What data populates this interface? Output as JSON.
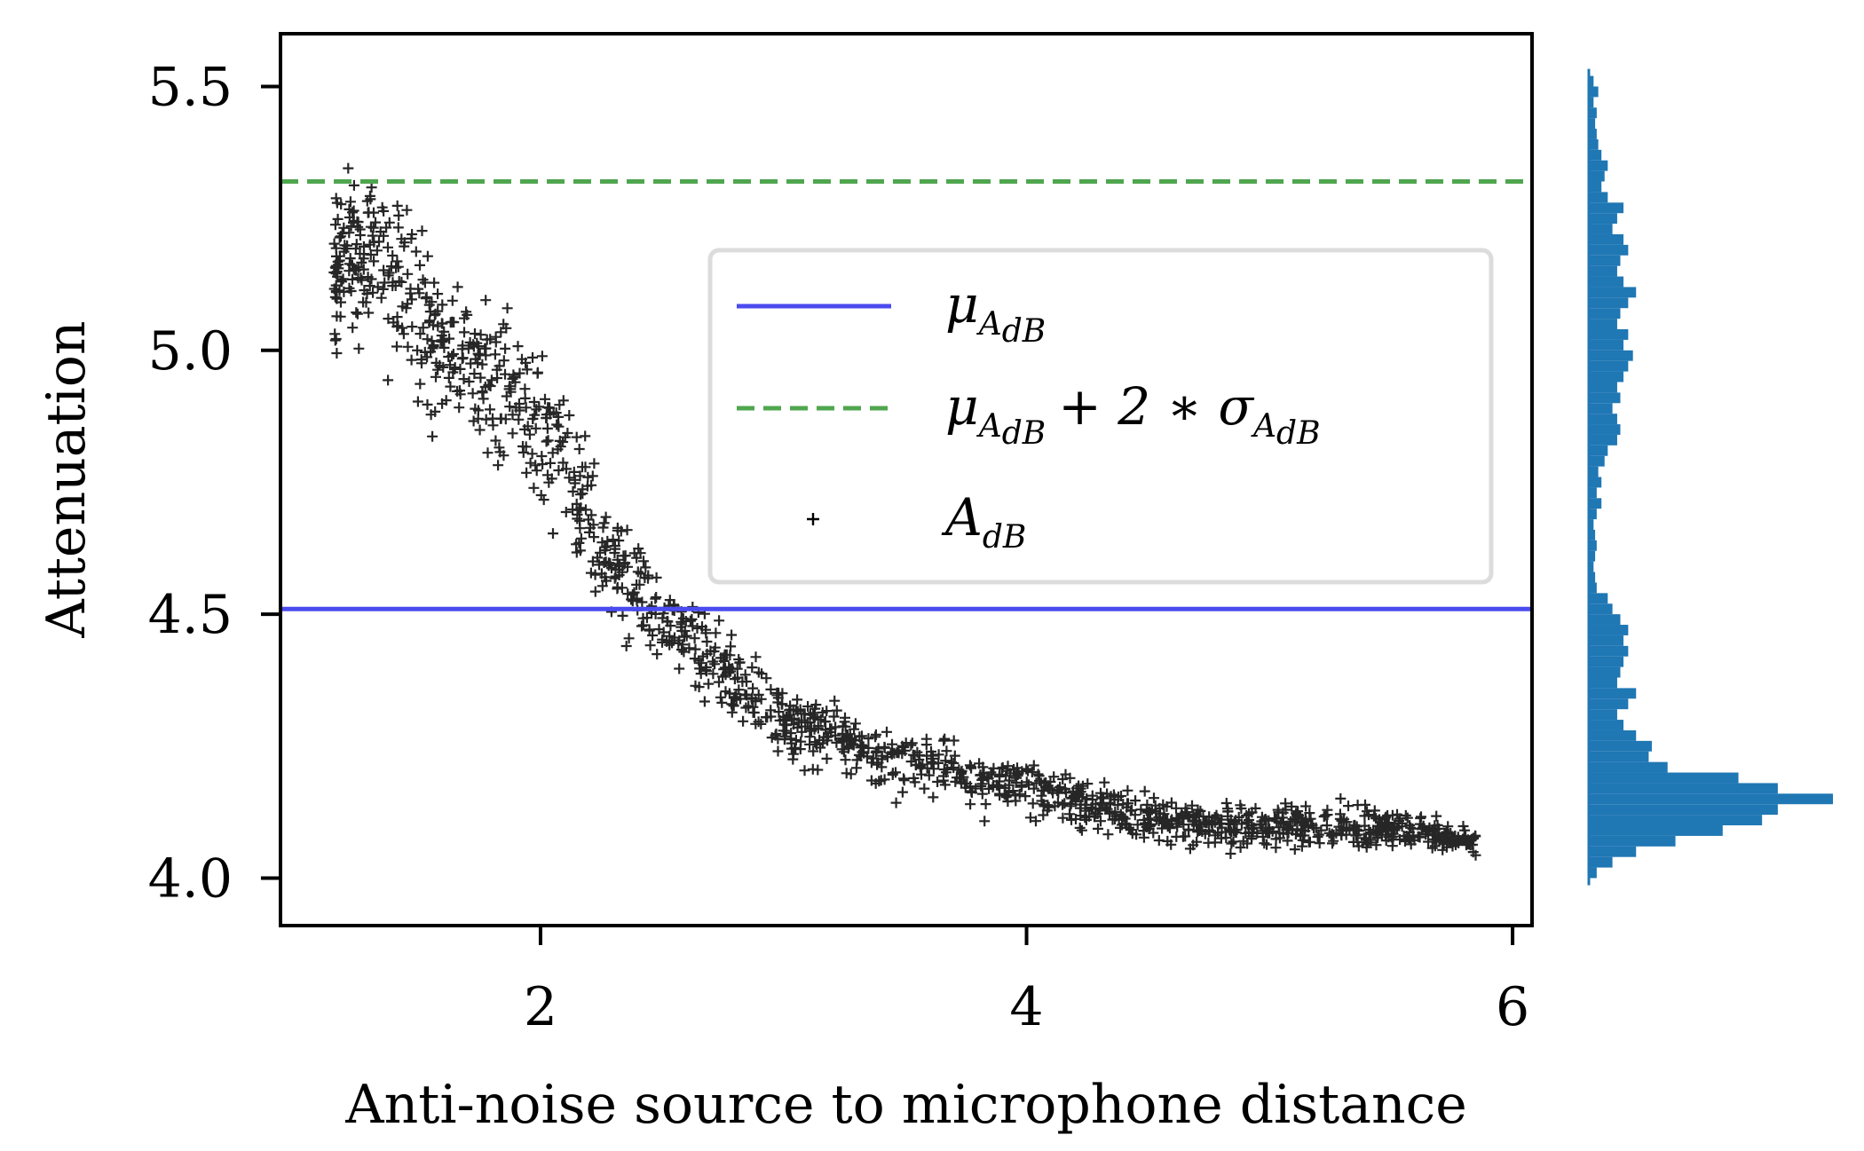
{
  "chart_data": {
    "type": "scatter",
    "xlabel": "Anti-noise source to microphone distance",
    "ylabel": "Attenuation",
    "xlim": [
      0.93,
      6.08
    ],
    "ylim": [
      3.91,
      5.6
    ],
    "x_ticks": [
      2,
      4,
      6
    ],
    "x_tick_labels": [
      "2",
      "4",
      "6"
    ],
    "y_ticks": [
      4.0,
      4.5,
      5.0,
      5.5
    ],
    "y_tick_labels": [
      "4.0",
      "4.5",
      "5.0",
      "5.5"
    ],
    "grid": false,
    "legend_position": "center-right",
    "mean_line": {
      "y": 4.51,
      "color": "#4b4bef",
      "style": "solid"
    },
    "mean_plus_2sd_line": {
      "y": 5.32,
      "color": "#4fa64f",
      "style": "dashed"
    },
    "scatter_color": "#000000",
    "histogram_color": "#1f77b4",
    "legend": [
      {
        "main": "μ",
        "sub": "A",
        "subsub": "dB",
        "tail": ""
      },
      {
        "main": "μ",
        "sub": "A",
        "subsub": "dB",
        "tail": "+ 2 ∗ σ"
      },
      {
        "main": "A",
        "sub": "dB",
        "subsub": "",
        "tail": ""
      }
    ],
    "trend": {
      "x": [
        1.15,
        1.3,
        1.5,
        1.7,
        1.9,
        2.1,
        2.3,
        2.5,
        2.7,
        3.0,
        3.3,
        3.6,
        4.0,
        4.4,
        4.8,
        5.2,
        5.6,
        5.85
      ],
      "y": [
        5.15,
        5.2,
        5.08,
        4.98,
        4.9,
        4.8,
        4.6,
        4.48,
        4.42,
        4.3,
        4.25,
        4.21,
        4.17,
        4.12,
        4.1,
        4.1,
        4.09,
        4.07
      ],
      "spread": [
        0.13,
        0.14,
        0.14,
        0.12,
        0.11,
        0.11,
        0.09,
        0.07,
        0.06,
        0.055,
        0.05,
        0.045,
        0.04,
        0.035,
        0.035,
        0.035,
        0.03,
        0.02
      ],
      "n_points": 1600
    },
    "histogram": {
      "bins": [
        4.0,
        4.02,
        4.04,
        4.06,
        4.08,
        4.1,
        4.12,
        4.14,
        4.16,
        4.18,
        4.2,
        4.22,
        4.24,
        4.26,
        4.28,
        4.3,
        4.32,
        4.34,
        4.36,
        4.38,
        4.4,
        4.42,
        4.44,
        4.46,
        4.48,
        4.5,
        4.52,
        4.54,
        4.56,
        4.58,
        4.6,
        4.62,
        4.64,
        4.66,
        4.68,
        4.7,
        4.72,
        4.74,
        4.76,
        4.78,
        4.8,
        4.82,
        4.84,
        4.86,
        4.88,
        4.9,
        4.92,
        4.94,
        4.96,
        4.98,
        5.0,
        5.02,
        5.04,
        5.06,
        5.08,
        5.1,
        5.12,
        5.14,
        5.16,
        5.18,
        5.2,
        5.22,
        5.24,
        5.26,
        5.28,
        5.3,
        5.32,
        5.34,
        5.36,
        5.38,
        5.4,
        5.42,
        5.44,
        5.46,
        5.48,
        5.5,
        5.52
      ],
      "counts": [
        5,
        15,
        30,
        55,
        85,
        110,
        120,
        155,
        120,
        95,
        50,
        38,
        40,
        30,
        22,
        18,
        25,
        30,
        18,
        20,
        22,
        25,
        22,
        25,
        20,
        15,
        12,
        5,
        4,
        3,
        4,
        5,
        4,
        3,
        5,
        8,
        5,
        8,
        6,
        10,
        12,
        18,
        20,
        18,
        15,
        20,
        18,
        22,
        25,
        28,
        22,
        25,
        18,
        20,
        25,
        30,
        22,
        18,
        20,
        25,
        22,
        15,
        18,
        22,
        12,
        8,
        10,
        12,
        8,
        6,
        5,
        4,
        5,
        3,
        6,
        3,
        2
      ]
    }
  }
}
